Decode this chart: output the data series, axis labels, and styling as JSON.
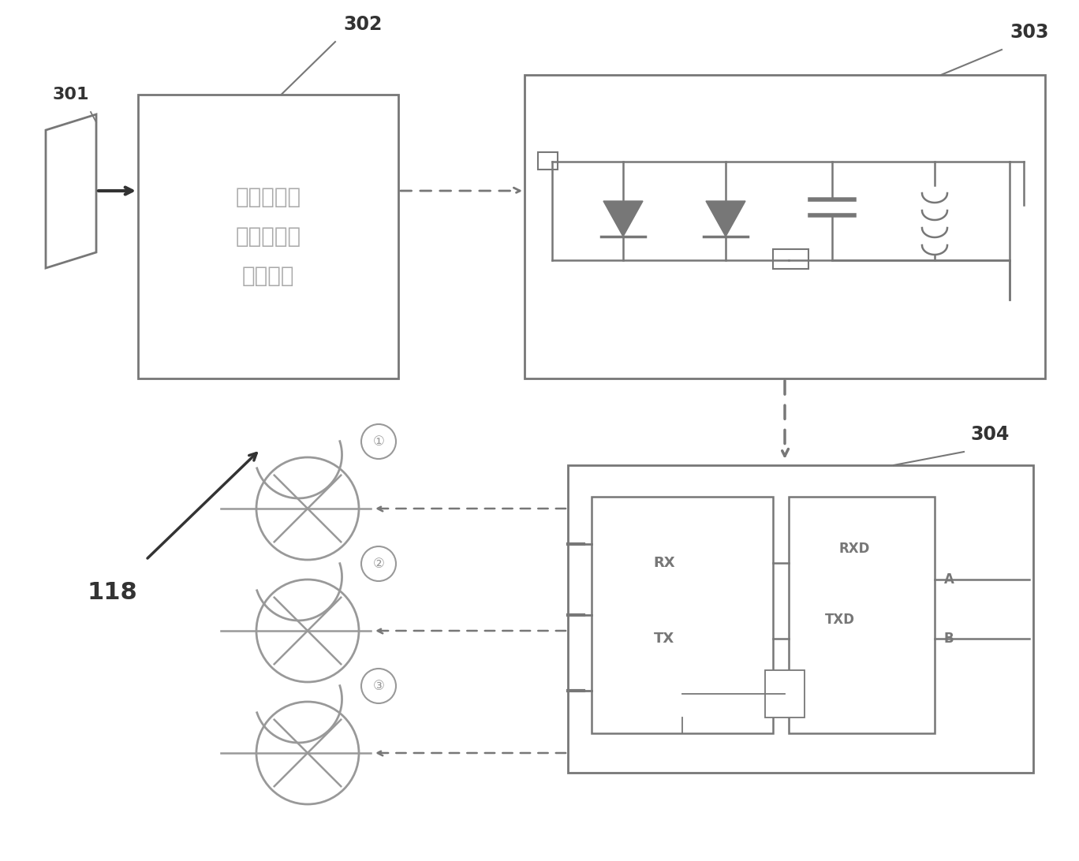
{
  "bg_color": "#ffffff",
  "gray": "#777777",
  "dgray": "#333333",
  "mgray": "#aaaaaa",
  "label_301": "301",
  "label_302": "302",
  "label_303": "303",
  "label_304": "304",
  "label_118": "118",
  "box302_text": "调度控制信\n号收发编码\n存储单元",
  "rx_text": "RX",
  "tx_text": "TX",
  "rxd_text": "RXD",
  "txd_text": "TXD",
  "a_text": "A",
  "b_text": "B",
  "motor_labels": [
    "①",
    "②",
    "③"
  ],
  "fig_w": 13.68,
  "fig_h": 10.92,
  "dpi": 100
}
